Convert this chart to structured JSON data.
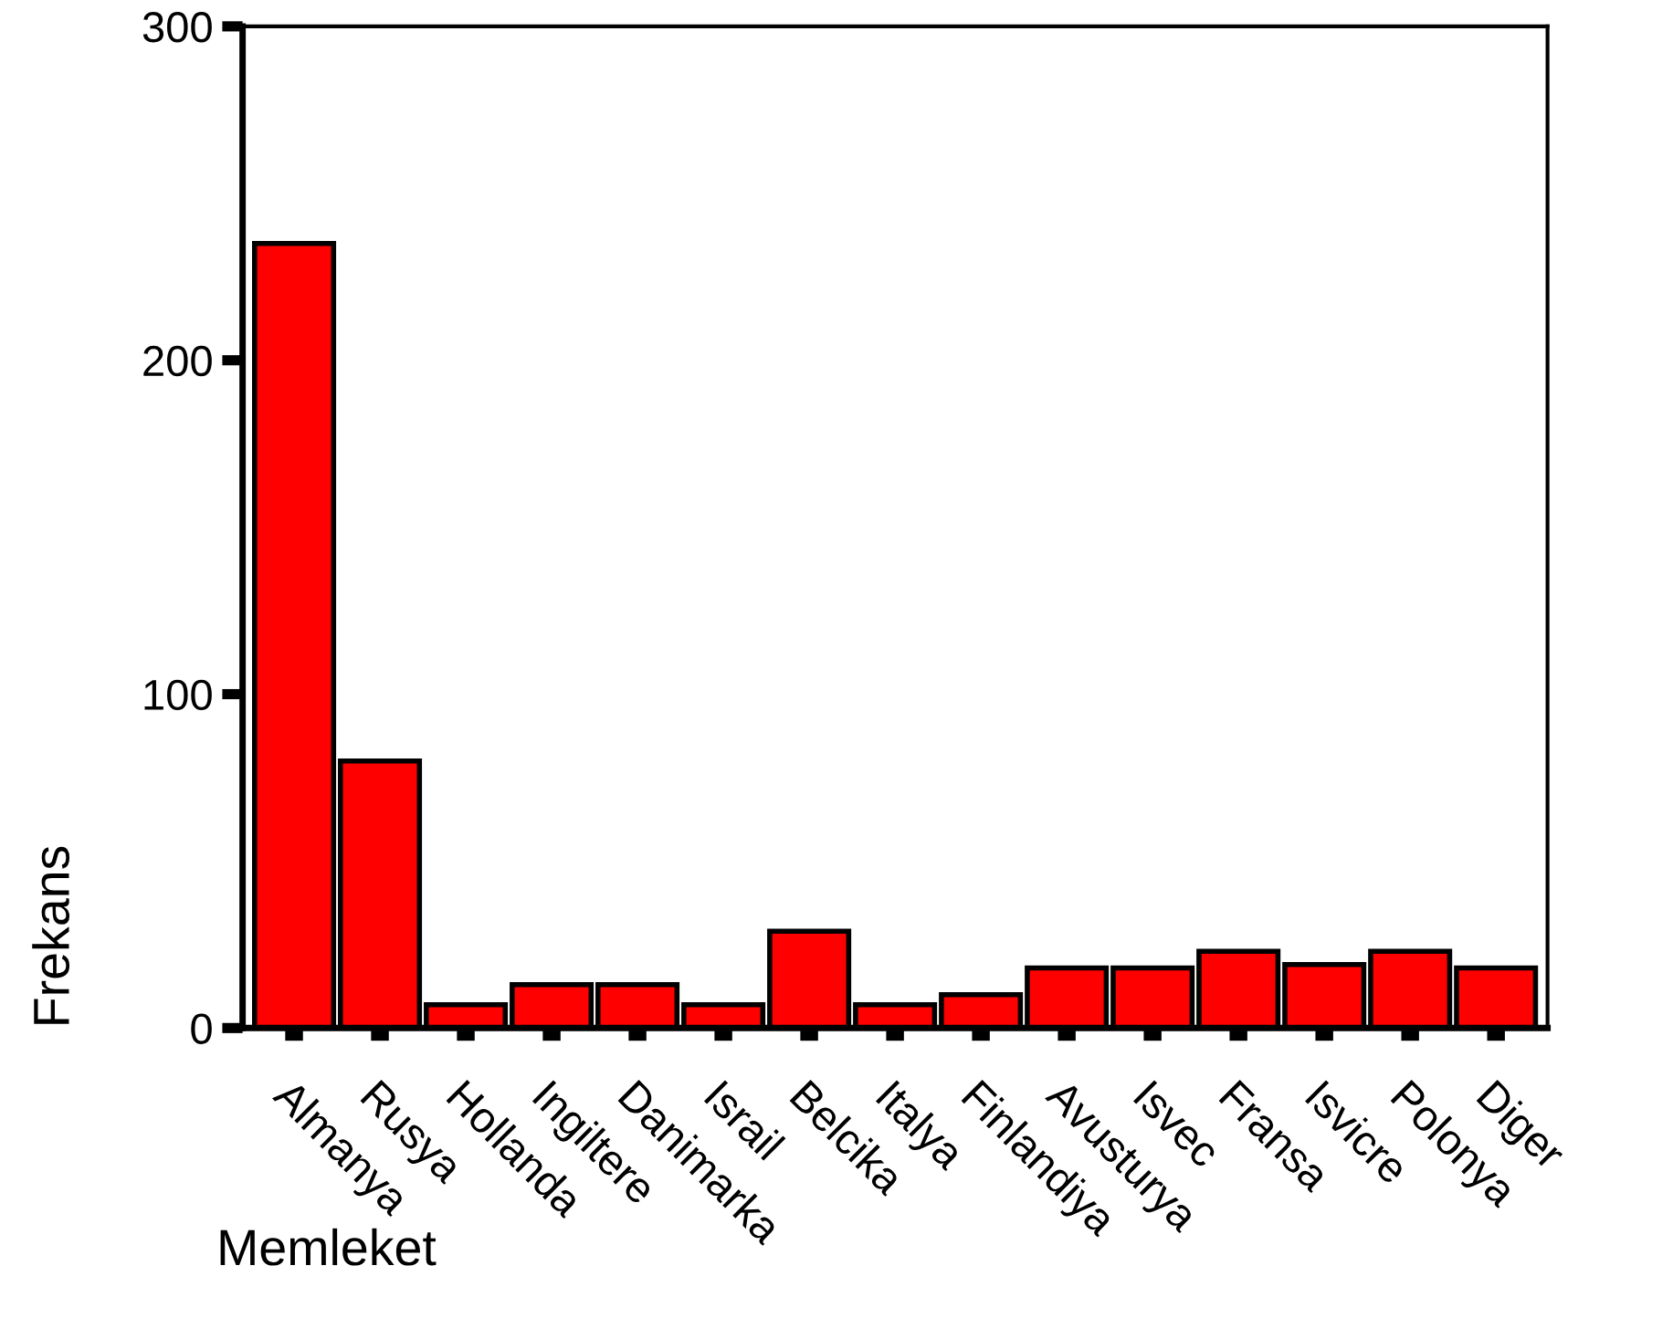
{
  "chart_data": {
    "type": "bar",
    "xlabel": "Memleket",
    "ylabel": "Frekans",
    "categories": [
      "Almanya",
      "Rusya",
      "Hollanda",
      "Ingiltere",
      "Danimarka",
      "Israil",
      "Belcika",
      "Italya",
      "Finlandiya",
      "Avusturya",
      "Isvec",
      "Fransa",
      "Isvicre",
      "Polonya",
      "Diger"
    ],
    "values": [
      235,
      80,
      7,
      13,
      13,
      7,
      29,
      7,
      10,
      18,
      18,
      23,
      19,
      23,
      18
    ],
    "color": "#ff0000",
    "ylim": [
      0,
      300
    ],
    "yticks": [
      0,
      100,
      200,
      300
    ],
    "grid": false
  }
}
